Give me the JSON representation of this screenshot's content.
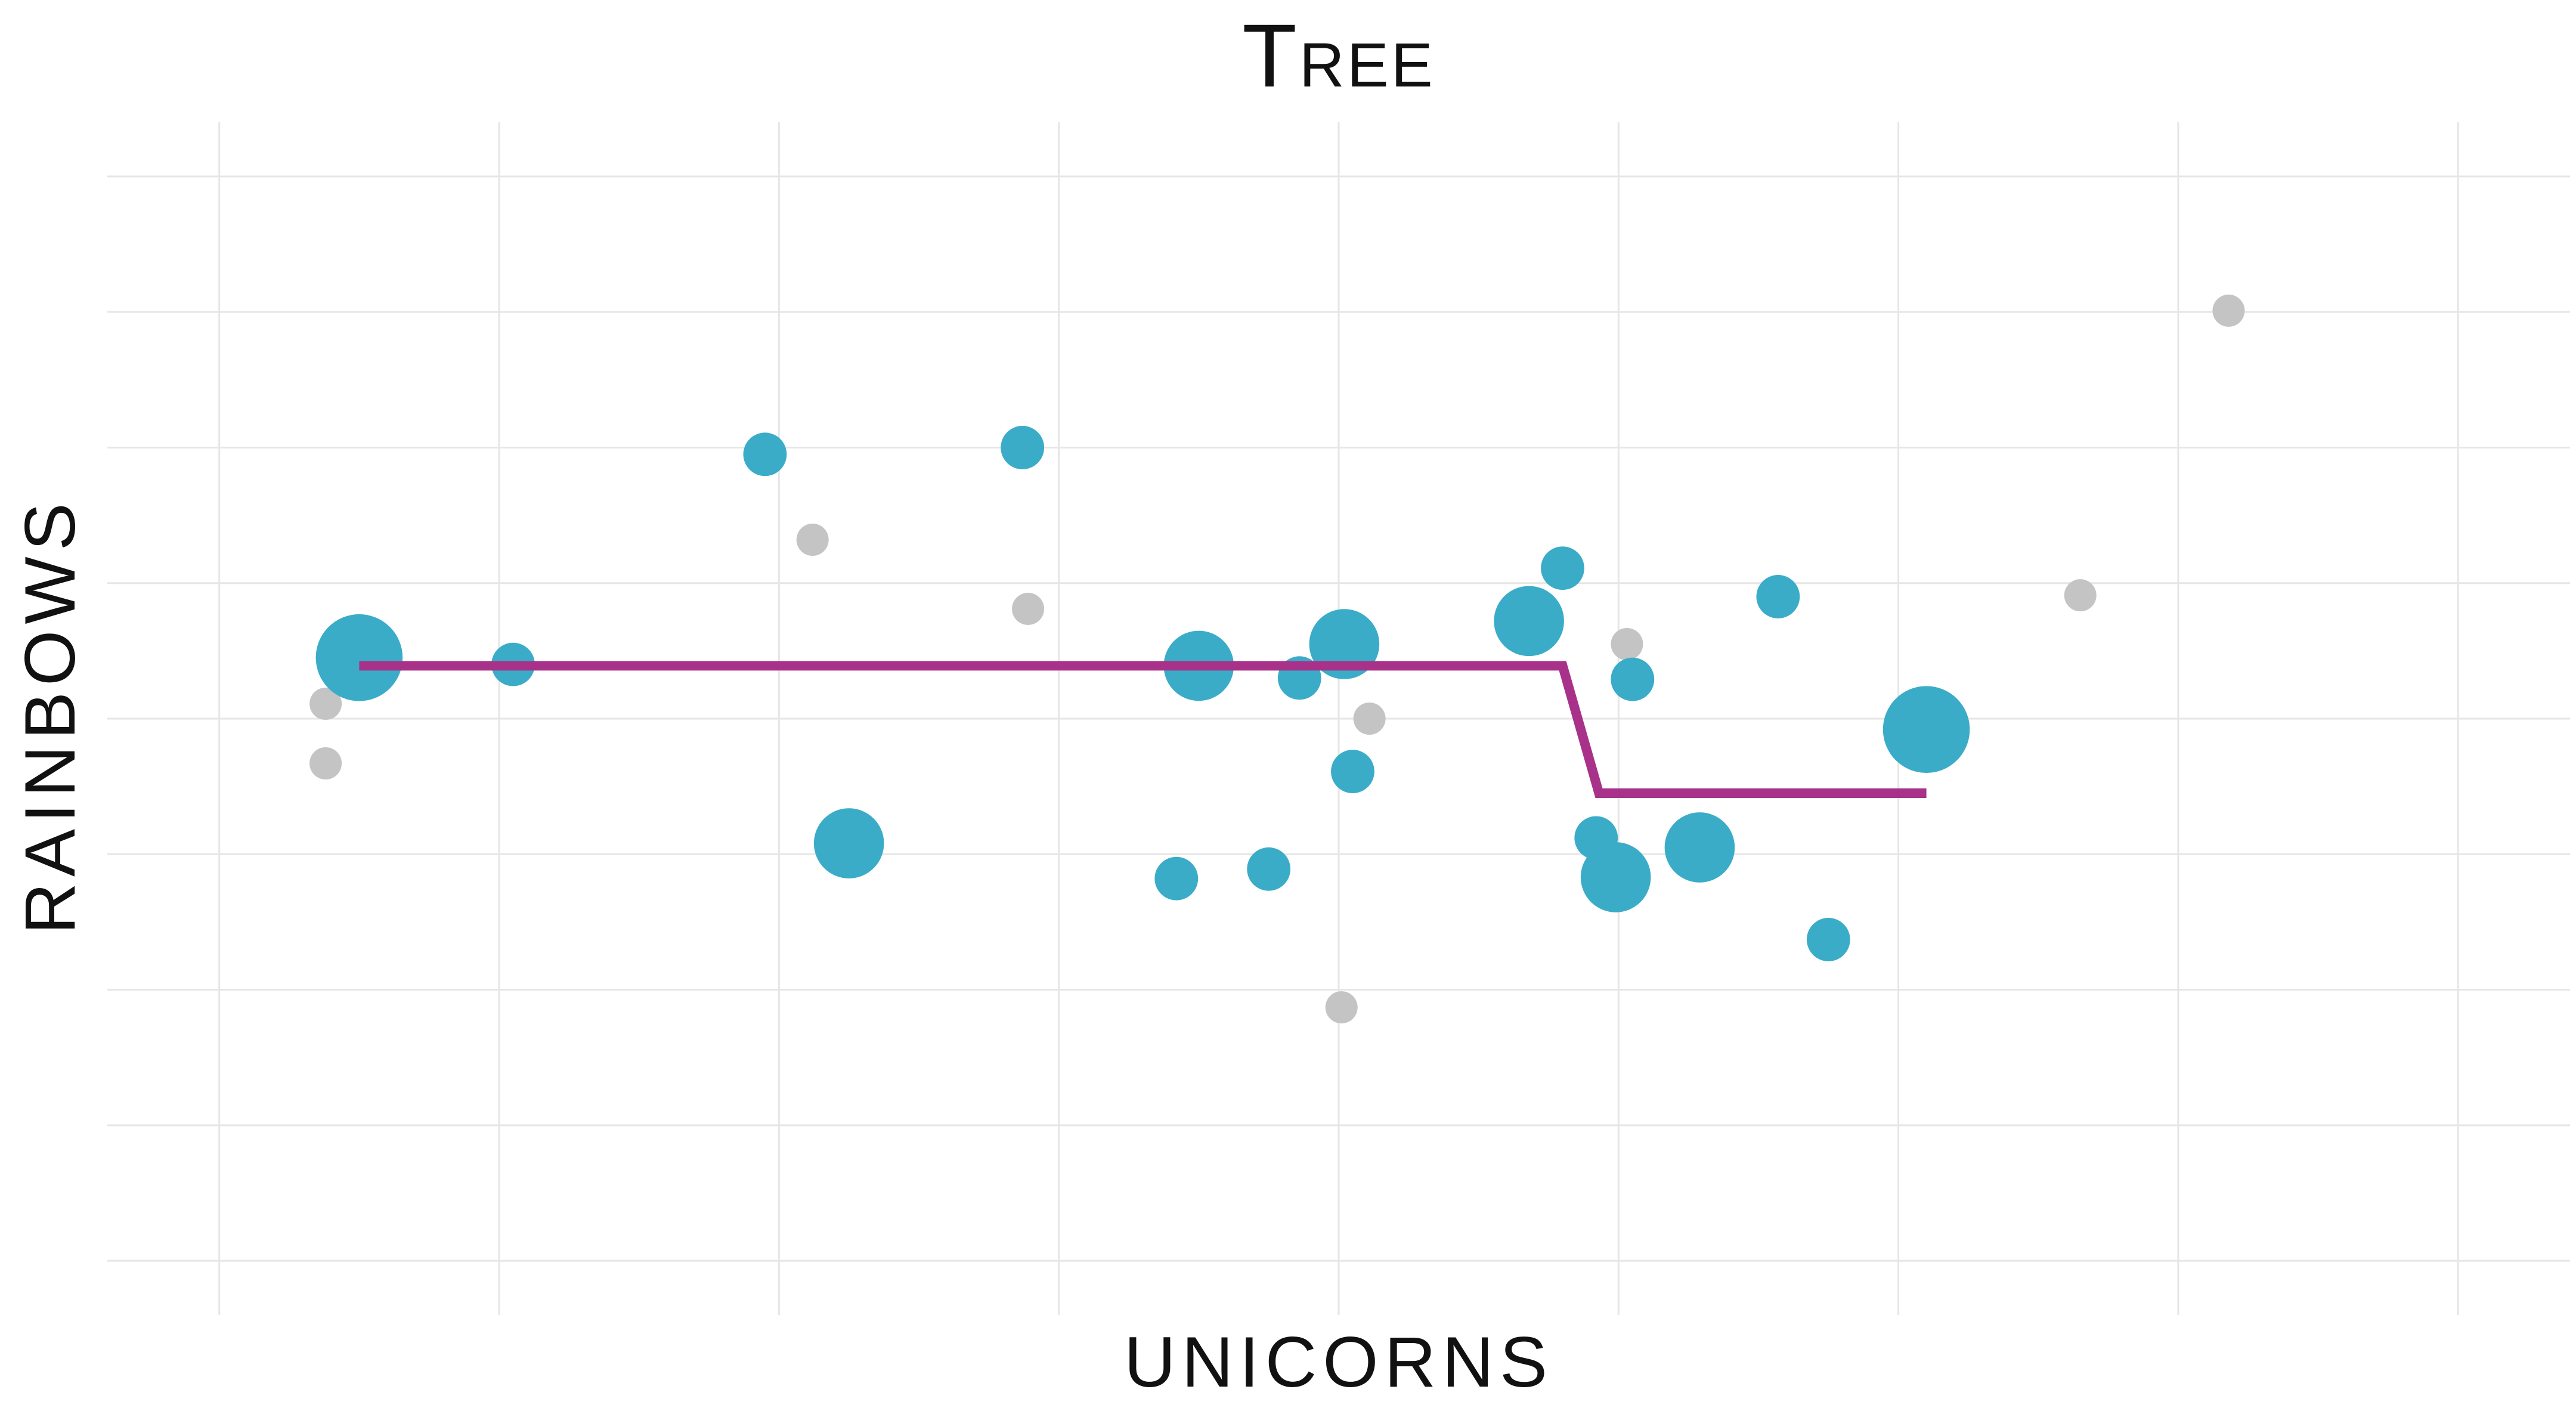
{
  "chart_data": {
    "type": "scatter",
    "title": "Tree",
    "xlabel": "UNICORNS",
    "ylabel": "RAINBOWS",
    "xlim": [
      -0.4,
      8.4
    ],
    "ylim": [
      -0.4,
      8.4
    ],
    "x_ticks": [
      0,
      1,
      2,
      3,
      4,
      5,
      6,
      7,
      8
    ],
    "y_ticks": [
      0,
      1,
      2,
      3,
      4,
      5,
      6,
      7,
      8
    ],
    "grid": true,
    "colors": {
      "highlight": "#3aacc8",
      "other": "#c4c4c4",
      "line": "#a83289",
      "grid": "#e6e6e6"
    },
    "series": [
      {
        "points": [
          {
            "x": 0.5,
            "y": 4.45,
            "size": 2.6
          },
          {
            "x": 1.05,
            "y": 4.4,
            "size": 1.3
          },
          {
            "x": 1.95,
            "y": 5.95,
            "size": 1.3
          },
          {
            "x": 2.25,
            "y": 3.08,
            "size": 2.1
          },
          {
            "x": 2.87,
            "y": 6.0,
            "size": 1.3
          },
          {
            "x": 3.42,
            "y": 2.82,
            "size": 1.3
          },
          {
            "x": 3.5,
            "y": 4.39,
            "size": 2.1
          },
          {
            "x": 3.75,
            "y": 2.89,
            "size": 1.3
          },
          {
            "x": 3.86,
            "y": 4.3,
            "size": 1.3
          },
          {
            "x": 4.02,
            "y": 4.55,
            "size": 2.1
          },
          {
            "x": 4.05,
            "y": 3.61,
            "size": 1.3
          },
          {
            "x": 4.68,
            "y": 4.72,
            "size": 2.1
          },
          {
            "x": 4.8,
            "y": 5.11,
            "size": 1.3
          },
          {
            "x": 4.92,
            "y": 3.12,
            "size": 1.3
          },
          {
            "x": 4.99,
            "y": 2.83,
            "size": 2.1
          },
          {
            "x": 5.05,
            "y": 4.29,
            "size": 1.3
          },
          {
            "x": 5.29,
            "y": 3.05,
            "size": 2.1
          },
          {
            "x": 5.57,
            "y": 4.9,
            "size": 1.3
          },
          {
            "x": 5.75,
            "y": 2.37,
            "size": 1.3
          },
          {
            "x": 6.1,
            "y": 3.92,
            "size": 2.6
          }
        ]
      },
      {
        "points": [
          {
            "x": 0.38,
            "y": 4.11
          },
          {
            "x": 0.38,
            "y": 3.67
          },
          {
            "x": 2.12,
            "y": 5.32
          },
          {
            "x": 2.89,
            "y": 4.81
          },
          {
            "x": 4.01,
            "y": 1.87
          },
          {
            "x": 4.11,
            "y": 4.0
          },
          {
            "x": 5.03,
            "y": 4.55
          },
          {
            "x": 6.65,
            "y": 4.91
          },
          {
            "x": 7.18,
            "y": 7.01
          }
        ]
      }
    ],
    "fit_line": {
      "x": [
        0.5,
        4.8,
        4.93,
        6.1
      ],
      "y": [
        4.39,
        4.39,
        3.45,
        3.45
      ]
    }
  }
}
